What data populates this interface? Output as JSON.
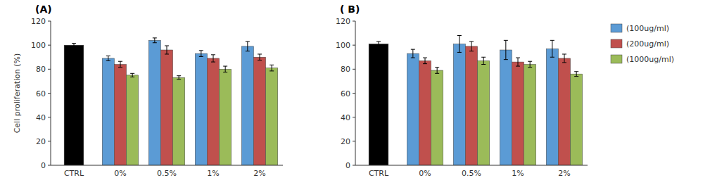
{
  "chart_data": [
    {
      "type": "bar",
      "title": "(A)",
      "ylabel": "Cell proliferation (%)",
      "categories": [
        "CTRL",
        "0%",
        "0.5%",
        "1%",
        "2%"
      ],
      "series": [
        {
          "color": "#000000",
          "values": [
            100,
            null,
            null,
            null,
            null
          ],
          "errors": [
            1.5,
            null,
            null,
            null,
            null
          ]
        },
        {
          "name": "(100ug/ml)",
          "color": "#5B9BD5",
          "values": [
            null,
            89,
            104,
            93,
            99
          ],
          "errors": [
            null,
            2.0,
            2.0,
            2.5,
            4.0
          ]
        },
        {
          "name": "(200ug/ml)",
          "color": "#C0504D",
          "values": [
            null,
            84,
            96,
            89,
            90
          ],
          "errors": [
            null,
            2.5,
            3.5,
            3.0,
            2.5
          ]
        },
        {
          "name": "(1000ug/ml)",
          "color": "#9BBB59",
          "values": [
            null,
            75,
            73,
            80,
            81
          ],
          "errors": [
            null,
            1.5,
            1.5,
            2.5,
            2.5
          ]
        }
      ],
      "ylim": [
        0,
        120
      ],
      "yticks": [
        0,
        20,
        40,
        60,
        80,
        100,
        120
      ],
      "grid": false
    },
    {
      "type": "bar",
      "title": "( B)",
      "categories": [
        "CTRL",
        "0%",
        "0.5%",
        "1%",
        "2%"
      ],
      "series": [
        {
          "color": "#000000",
          "values": [
            101,
            null,
            null,
            null,
            null
          ],
          "errors": [
            2.0,
            null,
            null,
            null,
            null
          ]
        },
        {
          "name": "(100ug/ml)",
          "color": "#5B9BD5",
          "values": [
            null,
            93,
            101,
            96,
            97
          ],
          "errors": [
            null,
            3.5,
            7.0,
            8.0,
            7.0
          ]
        },
        {
          "name": "(200ug/ml)",
          "color": "#C0504D",
          "values": [
            null,
            87,
            99,
            86,
            89
          ],
          "errors": [
            null,
            2.5,
            4.0,
            3.5,
            3.5
          ]
        },
        {
          "name": "(1000ug/ml)",
          "color": "#9BBB59",
          "values": [
            null,
            79,
            87,
            84,
            76
          ],
          "errors": [
            null,
            2.5,
            3.0,
            2.5,
            2.0
          ]
        }
      ],
      "ylim": [
        0,
        120
      ],
      "yticks": [
        0,
        20,
        40,
        60,
        80,
        100,
        120
      ],
      "grid": false,
      "legend": "right"
    }
  ]
}
